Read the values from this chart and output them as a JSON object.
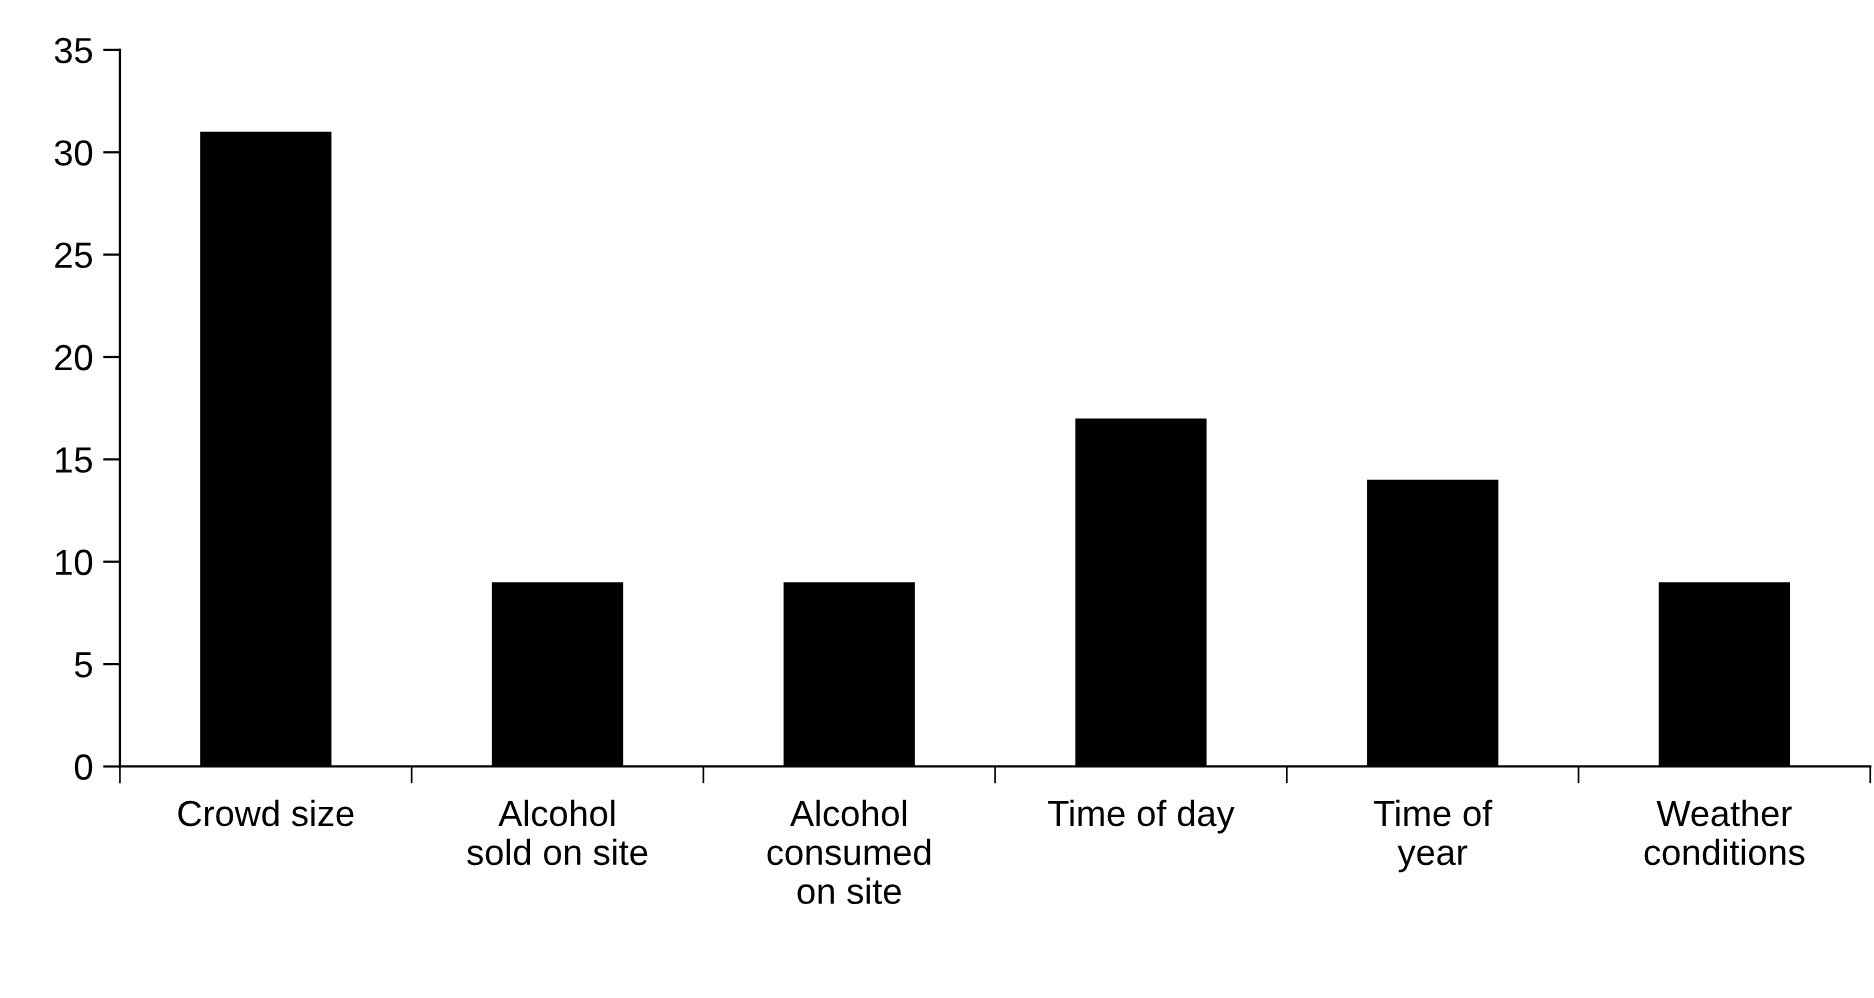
{
  "chart_data": {
    "type": "bar",
    "categories": [
      "Crowd size",
      "Alcohol\nsold on site",
      "Alcohol\nconsumed\non site",
      "Time of day",
      "Time of\nyear",
      "Weather\nconditions"
    ],
    "values": [
      31,
      9,
      9,
      17,
      14,
      9
    ],
    "color": "#000000",
    "ylim": [
      0,
      35
    ],
    "yticks": [
      0,
      5,
      10,
      15,
      20,
      25,
      30,
      35
    ],
    "grid": false,
    "legend": false
  }
}
